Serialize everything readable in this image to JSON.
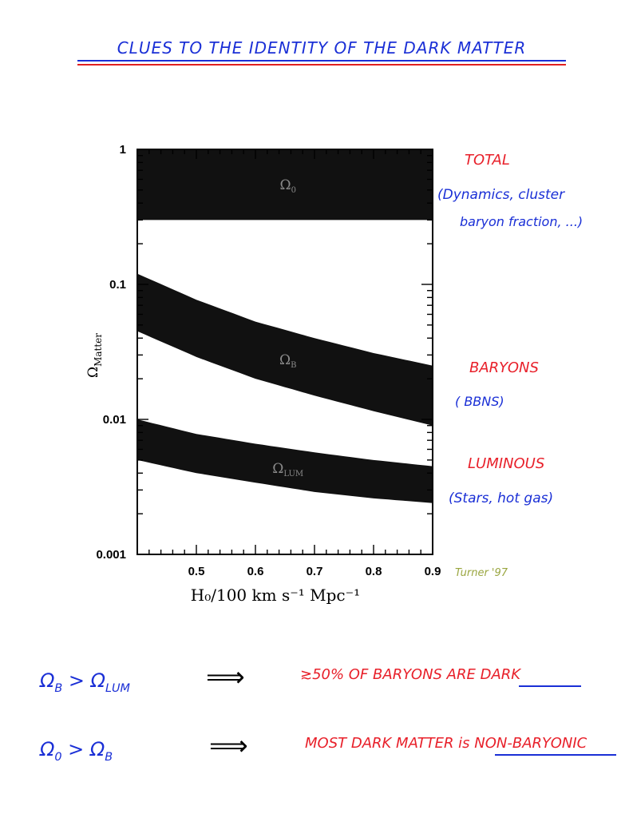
{
  "page": {
    "title": "CLUES TO THE IDENTITY OF THE DARK MATTER"
  },
  "annotations": {
    "total_label": "TOTAL",
    "total_note_1": "(Dynamics, cluster",
    "total_note_2": "baryon fraction, ...)",
    "baryons_label": "BARYONS",
    "baryons_note": "( BBNS)",
    "luminous_label": "LUMINOUS",
    "luminous_note": "(Stars, hot gas)",
    "credit": "Turner '97"
  },
  "conclusions": [
    {
      "lhs": "Ω",
      "lhs_sub": "B",
      "op": ">",
      "rhs": "Ω",
      "rhs_sub": "LUM",
      "arrow": "⟹",
      "result_prefix": "≳50% OF BARYONS ARE ",
      "result_emphasis": "DARK"
    },
    {
      "lhs": "Ω",
      "lhs_sub": "0",
      "op": ">",
      "rhs": "Ω",
      "rhs_sub": "B",
      "arrow": "⟹",
      "result_prefix": "MOST DARK MATTER is ",
      "result_emphasis": "NON-BARYONIC"
    }
  ],
  "colors": {
    "handwriting_blue": "#1a2fd6",
    "handwriting_red": "#e8202a",
    "band_fill": "#111111"
  },
  "chart_data": {
    "type": "area",
    "title": "",
    "xlabel": "H₀/100 km s⁻¹ Mpc⁻¹",
    "ylabel": "Ω_Matter",
    "xlim": [
      0.4,
      0.9
    ],
    "ylim": [
      0.001,
      1
    ],
    "yscale": "log",
    "xticks": [
      "0.5",
      "0.6",
      "0.7",
      "0.8",
      "0.9"
    ],
    "yticks": [
      "0.001",
      "0.01",
      "0.1",
      "1"
    ],
    "grid": false,
    "legend": "none",
    "series": [
      {
        "name": "Ω0",
        "x": [
          0.4,
          0.9
        ],
        "lower": [
          0.3,
          0.3
        ],
        "upper": [
          1.0,
          1.0
        ]
      },
      {
        "name": "ΩB",
        "x": [
          0.4,
          0.5,
          0.6,
          0.7,
          0.8,
          0.9
        ],
        "lower": [
          0.045,
          0.029,
          0.02,
          0.015,
          0.0115,
          0.009
        ],
        "upper": [
          0.12,
          0.077,
          0.053,
          0.04,
          0.031,
          0.025
        ]
      },
      {
        "name": "ΩLUM",
        "x": [
          0.4,
          0.5,
          0.6,
          0.7,
          0.8,
          0.9
        ],
        "lower": [
          0.005,
          0.004,
          0.0034,
          0.0029,
          0.0026,
          0.0024
        ],
        "upper": [
          0.01,
          0.0078,
          0.0066,
          0.0057,
          0.005,
          0.0045
        ]
      }
    ]
  }
}
